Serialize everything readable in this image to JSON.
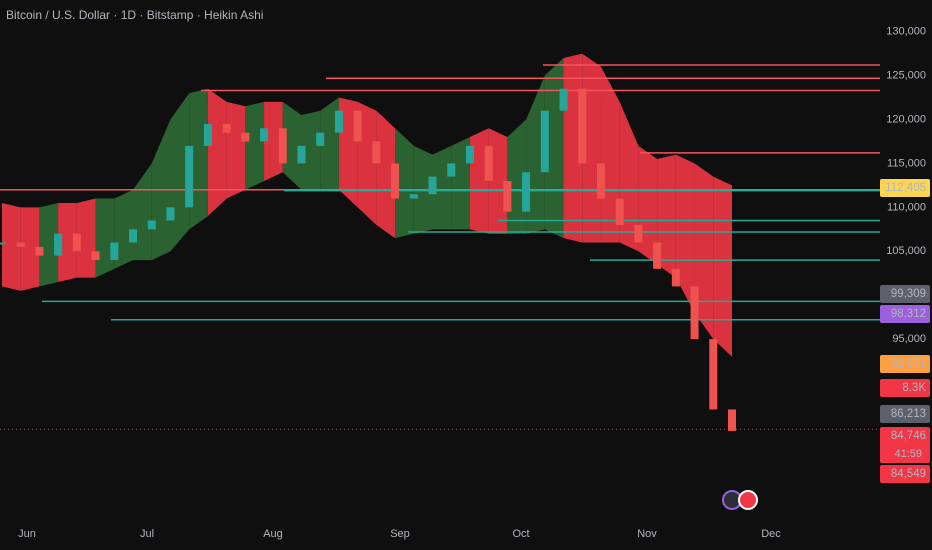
{
  "chart_data": {
    "type": "candlestick",
    "title": "Bitcoin / U.S. Dollar · 1D · Bitstamp · Heikin Ashi",
    "xticks": [
      "Jun",
      "Jul",
      "Aug",
      "Sep",
      "Oct",
      "Nov",
      "Dec"
    ],
    "values": [
      106000,
      105500,
      104500,
      107000,
      105000,
      104000,
      106000,
      107500,
      108500,
      110000,
      117000,
      119500,
      118500,
      117500,
      119000,
      115000,
      117000,
      118500,
      121000,
      117500,
      115000,
      111000,
      111500,
      113500,
      115000,
      117000,
      113000,
      109500,
      114000,
      121000,
      123500,
      115000,
      111000,
      108000,
      106000,
      103000,
      101000,
      95000,
      87000,
      84549
    ],
    "band_upper": [
      110500,
      110000,
      110000,
      110500,
      110500,
      111000,
      111000,
      112000,
      115000,
      120000,
      123000,
      123500,
      122000,
      121500,
      122000,
      122000,
      120500,
      121000,
      122500,
      122000,
      121000,
      119000,
      117000,
      116000,
      117000,
      118000,
      119000,
      118000,
      120000,
      125000,
      127000,
      127500,
      126000,
      122000,
      117000,
      115500,
      116000,
      115000,
      113500,
      112500
    ],
    "band_lower": [
      101000,
      100500,
      101000,
      101500,
      102000,
      102000,
      103000,
      104000,
      104000,
      105000,
      107500,
      109000,
      111000,
      112000,
      113000,
      114000,
      112000,
      112000,
      112000,
      110000,
      108000,
      106500,
      107000,
      107500,
      107500,
      107500,
      107000,
      107000,
      107000,
      107500,
      106500,
      106000,
      106000,
      106000,
      105000,
      103500,
      102000,
      98000,
      95000,
      93000
    ],
    "levels": [
      {
        "value": 126200,
        "color": "#f7525f"
      },
      {
        "value": 124700,
        "color": "#f7525f"
      },
      {
        "value": 123300,
        "color": "#f7525f"
      },
      {
        "value": 116200,
        "color": "#f7525f"
      },
      {
        "value": 112000,
        "color": "#f7525f"
      },
      {
        "value": 111900,
        "color": "#22ab94"
      },
      {
        "value": 108500,
        "color": "#22ab94"
      },
      {
        "value": 107200,
        "color": "#22ab94"
      },
      {
        "value": 104000,
        "color": "#22ab94"
      },
      {
        "value": 99300,
        "color": "#22ab94"
      },
      {
        "value": 97200,
        "color": "#22ab94"
      }
    ],
    "price_labels": [
      {
        "value": 112405,
        "label": "112,405",
        "color": "#ffd54f"
      },
      {
        "value": 99309,
        "label": "99,309",
        "color": "#5d606b"
      },
      {
        "value": 98312,
        "label": "98,312",
        "color": "#9c5fe0"
      },
      {
        "value": 92671,
        "label": "92,671",
        "color": "#ff9f40"
      },
      {
        "value": 8300,
        "label": "8.3K",
        "color": "#f23645"
      },
      {
        "value": 86213,
        "label": "86,213",
        "color": "#5d606b"
      },
      {
        "value": 84746,
        "label": "84,746",
        "color": "#f23645"
      },
      {
        "value": 84549,
        "label": "84,549",
        "color": "#f23645"
      }
    ],
    "countdown": "41:59",
    "ylim": [
      71000,
      133600
    ],
    "yticks": [
      {
        "value": 130000,
        "label": "130,000"
      },
      {
        "value": 125000,
        "label": "125,000"
      },
      {
        "value": 120000,
        "label": "120,000"
      },
      {
        "value": 115000,
        "label": "115,000"
      },
      {
        "value": 110000,
        "label": "110,000"
      },
      {
        "value": 105000,
        "label": "105,000"
      },
      {
        "value": 95000,
        "label": "95,000"
      }
    ]
  }
}
